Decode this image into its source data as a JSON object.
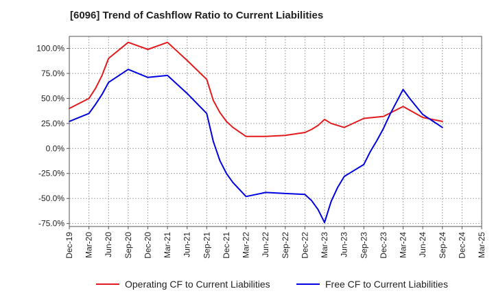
{
  "chart_data": {
    "type": "line",
    "title": "[6096]  Trend of Cashflow Ratio to Current Liabilities",
    "xlabel": "",
    "ylabel": "",
    "x_tick_labels": [
      "Dec-19",
      "Mar-20",
      "Jun-20",
      "Sep-20",
      "Dec-20",
      "Mar-21",
      "Jun-21",
      "Sep-21",
      "Dec-21",
      "Mar-22",
      "Jun-22",
      "Sep-22",
      "Dec-22",
      "Mar-23",
      "Jun-23",
      "Sep-23",
      "Dec-23",
      "Mar-24",
      "Jun-24",
      "Sep-24",
      "Dec-24",
      "Mar-25"
    ],
    "y_tick_labels": [
      "100.0%",
      "75.0%",
      "50.0%",
      "25.0%",
      "0.0%",
      "-25.0%",
      "-50.0%",
      "-75.0%"
    ],
    "y_ticks": [
      100,
      75,
      50,
      25,
      0,
      -25,
      -50,
      -75
    ],
    "ylim": [
      -78,
      112
    ],
    "grid": true,
    "legend_position": "bottom",
    "series": [
      {
        "name": "Operating CF to Current Liabilities",
        "color": "#e31a1c",
        "points": [
          [
            "Dec-19",
            40
          ],
          [
            "Mar-20",
            50
          ],
          [
            "Apr-20",
            60
          ],
          [
            "May-20",
            73
          ],
          [
            "Jun-20",
            90
          ],
          [
            "Sep-20",
            106
          ],
          [
            "Dec-20",
            99
          ],
          [
            "Mar-21",
            106
          ],
          [
            "Jun-21",
            88
          ],
          [
            "Sep-21",
            69
          ],
          [
            "Oct-21",
            48
          ],
          [
            "Nov-21",
            36
          ],
          [
            "Dec-21",
            27
          ],
          [
            "Jan-22",
            21
          ],
          [
            "Mar-22",
            12
          ],
          [
            "Jun-22",
            12
          ],
          [
            "Sep-22",
            13
          ],
          [
            "Dec-22",
            16
          ],
          [
            "Jan-23",
            19
          ],
          [
            "Feb-23",
            23
          ],
          [
            "Mar-23",
            29
          ],
          [
            "Apr-23",
            25
          ],
          [
            "Jun-23",
            21
          ],
          [
            "Sep-23",
            30
          ],
          [
            "Dec-23",
            32
          ],
          [
            "Mar-24",
            42
          ],
          [
            "Jun-24",
            31
          ],
          [
            "Sep-24",
            27
          ]
        ]
      },
      {
        "name": "Free CF to Current Liabilities",
        "color": "#0000e0",
        "points": [
          [
            "Dec-19",
            27
          ],
          [
            "Mar-20",
            35
          ],
          [
            "Apr-20",
            44
          ],
          [
            "May-20",
            54
          ],
          [
            "Jun-20",
            66
          ],
          [
            "Sep-20",
            79
          ],
          [
            "Dec-20",
            71
          ],
          [
            "Mar-21",
            73
          ],
          [
            "Jun-21",
            55
          ],
          [
            "Sep-21",
            35
          ],
          [
            "Oct-21",
            7
          ],
          [
            "Nov-21",
            -12
          ],
          [
            "Dec-21",
            -25
          ],
          [
            "Jan-22",
            -34
          ],
          [
            "Feb-22",
            -41
          ],
          [
            "Mar-22",
            -48
          ],
          [
            "Jun-22",
            -44
          ],
          [
            "Sep-22",
            -45
          ],
          [
            "Dec-22",
            -46
          ],
          [
            "Jan-23",
            -52
          ],
          [
            "Feb-23",
            -61
          ],
          [
            "Mar-23",
            -74
          ],
          [
            "Apr-23",
            -53
          ],
          [
            "May-23",
            -39
          ],
          [
            "Jun-23",
            -28
          ],
          [
            "Sep-23",
            -16
          ],
          [
            "Oct-23",
            -3
          ],
          [
            "Nov-23",
            8
          ],
          [
            "Dec-23",
            20
          ],
          [
            "Jan-24",
            34
          ],
          [
            "Mar-24",
            59
          ],
          [
            "Apr-24",
            50
          ],
          [
            "Jun-24",
            34
          ],
          [
            "Sep-24",
            21
          ]
        ]
      }
    ]
  }
}
